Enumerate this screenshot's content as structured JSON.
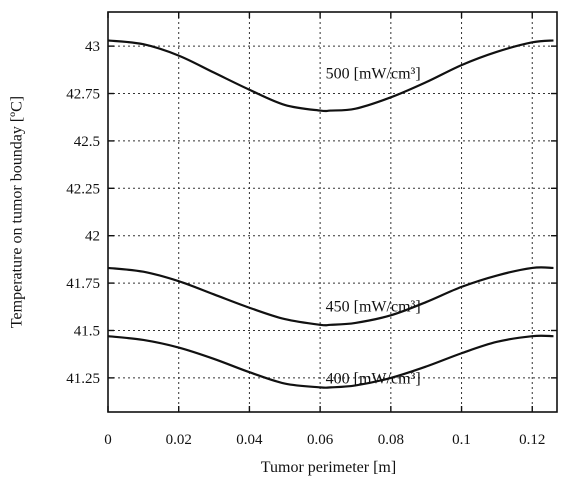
{
  "chart_data": {
    "type": "line",
    "title": "",
    "xlabel": "Tumor perimeter [m]",
    "ylabel": "Temperature on tumor bounday [ºC]",
    "xlim": [
      0,
      0.127
    ],
    "ylim": [
      41.07,
      43.18
    ],
    "xticks": [
      0,
      0.02,
      0.04,
      0.06,
      0.08,
      0.1,
      0.12
    ],
    "xtick_labels": [
      "0",
      "0.02",
      "0.04",
      "0.06",
      "0.08",
      "0.1",
      "0.12"
    ],
    "yticks": [
      41.25,
      41.5,
      41.75,
      42,
      42.25,
      42.5,
      42.75,
      43
    ],
    "ytick_labels": [
      "41.25",
      "41.5",
      "41.75",
      "42",
      "42.25",
      "42.5",
      "42.75",
      "43"
    ],
    "grid": true,
    "series": [
      {
        "name": "500 [mW/cm³]",
        "x": [
          0,
          0.01,
          0.02,
          0.03,
          0.04,
          0.05,
          0.06,
          0.063,
          0.07,
          0.08,
          0.09,
          0.1,
          0.11,
          0.12,
          0.126
        ],
        "values": [
          43.03,
          43.01,
          42.95,
          42.86,
          42.77,
          42.69,
          42.66,
          42.66,
          42.67,
          42.73,
          42.81,
          42.9,
          42.97,
          43.02,
          43.03
        ]
      },
      {
        "name": "450 [mW/cm³]",
        "x": [
          0,
          0.01,
          0.02,
          0.03,
          0.04,
          0.05,
          0.06,
          0.063,
          0.07,
          0.08,
          0.09,
          0.1,
          0.11,
          0.12,
          0.126
        ],
        "values": [
          41.83,
          41.81,
          41.76,
          41.69,
          41.62,
          41.56,
          41.53,
          41.53,
          41.54,
          41.58,
          41.65,
          41.73,
          41.79,
          41.83,
          41.83
        ]
      },
      {
        "name": "400 [mW/cm³]",
        "x": [
          0,
          0.01,
          0.02,
          0.03,
          0.04,
          0.05,
          0.06,
          0.063,
          0.07,
          0.08,
          0.09,
          0.1,
          0.11,
          0.12,
          0.126
        ],
        "values": [
          41.47,
          41.45,
          41.41,
          41.35,
          41.28,
          41.22,
          41.2,
          41.2,
          41.21,
          41.25,
          41.31,
          41.38,
          41.44,
          41.47,
          41.47
        ]
      }
    ],
    "annotations": [
      {
        "text": "500 [mW/cm³]",
        "x": 0.075,
        "y": 42.83
      },
      {
        "text": "450 [mW/cm³]",
        "x": 0.075,
        "y": 41.6
      },
      {
        "text": "400 [mW/cm³]",
        "x": 0.075,
        "y": 41.22
      }
    ]
  }
}
